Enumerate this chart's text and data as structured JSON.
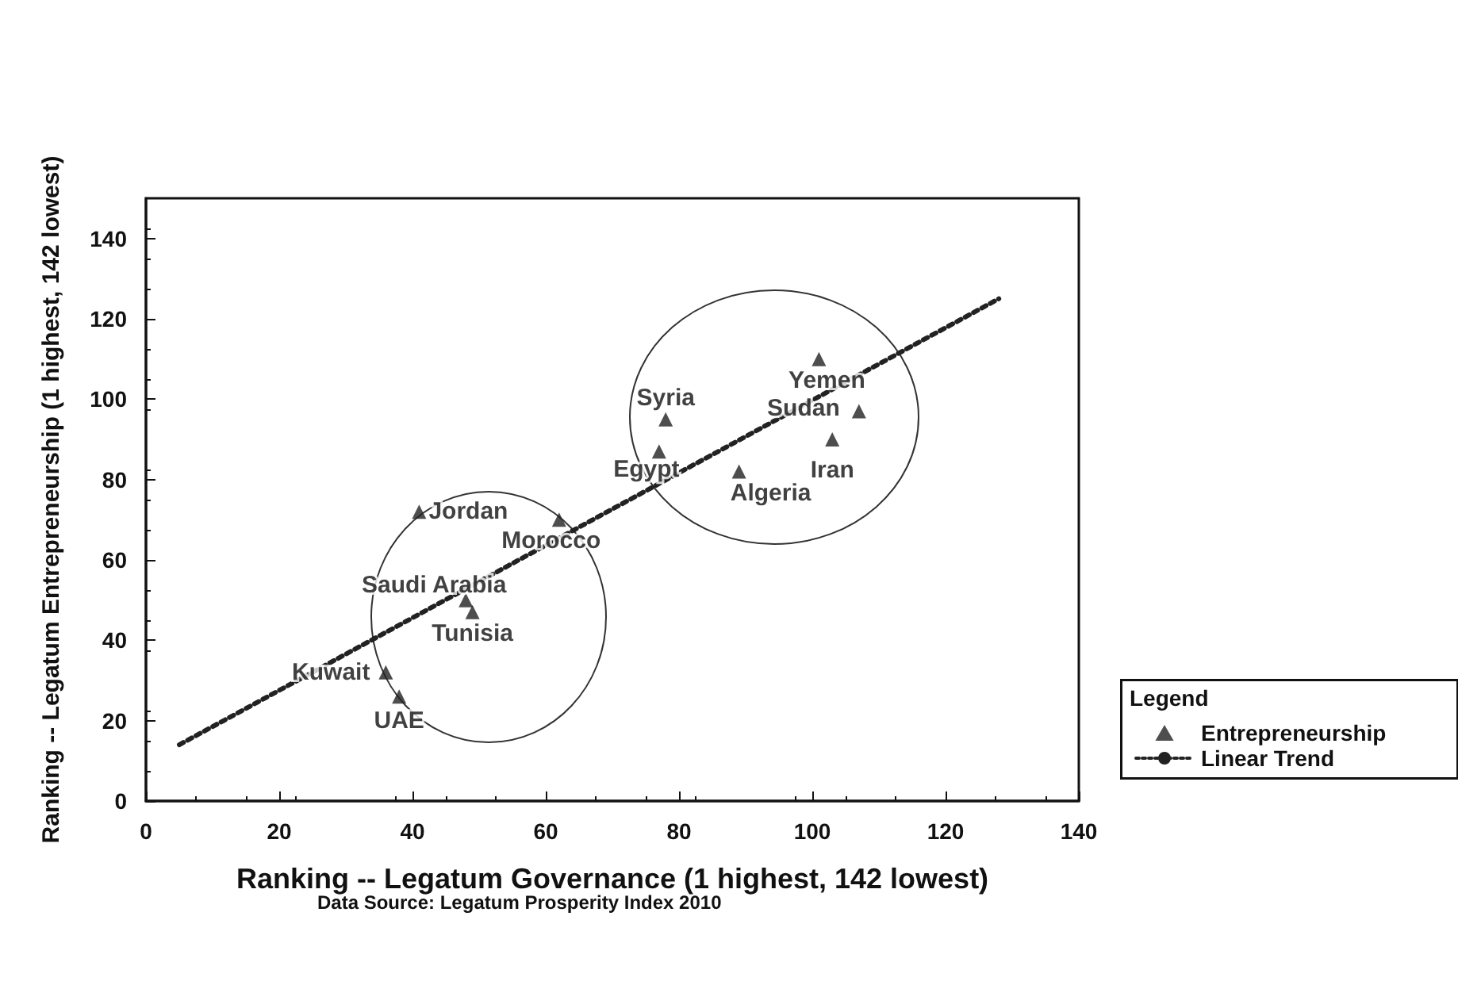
{
  "chart_data": {
    "type": "scatter",
    "xlabel": "Ranking -- Legatum Governance (1 highest, 142 lowest)",
    "ylabel": "Ranking -- Legatum Entrepreneurship (1 highest, 142 lowest)",
    "legend_title": "Legend",
    "xlim": [
      0,
      140
    ],
    "ylim": [
      0,
      150
    ],
    "xticks": [
      0,
      20,
      40,
      60,
      80,
      100,
      120,
      140
    ],
    "yticks": [
      0,
      20,
      40,
      60,
      80,
      100,
      120,
      140
    ],
    "grid": false,
    "legend": "bottom right",
    "series": [
      {
        "name": "Entrepreneurship",
        "color": "#222222",
        "marker": "triangle",
        "x": [
          41,
          62,
          48,
          49,
          36,
          38,
          78,
          77,
          89,
          101,
          107,
          103
        ],
        "values": [
          72,
          70,
          50,
          47,
          32,
          26,
          95,
          87,
          82,
          110,
          97,
          90
        ]
      },
      {
        "name": "Linear Trend",
        "type": "line",
        "color": "#222222",
        "marker": "none",
        "line_style": "dotted",
        "x": [
          5,
          128
        ],
        "values": [
          14,
          125
        ]
      }
    ],
    "annotations": [
      {
        "text": "Jordan",
        "x": 41,
        "y": 72
      },
      {
        "text": "Morocco",
        "x": 62,
        "y": 70
      },
      {
        "text": "Saudi Arabia",
        "x": 48,
        "y": 50
      },
      {
        "text": "Tunisia",
        "x": 49,
        "y": 47
      },
      {
        "text": "Kuwait",
        "x": 36,
        "y": 32
      },
      {
        "text": "UAE",
        "x": 38,
        "y": 26
      },
      {
        "text": "Syria",
        "x": 78,
        "y": 95
      },
      {
        "text": "Egypt",
        "x": 77,
        "y": 87
      },
      {
        "text": "Algeria",
        "x": 89,
        "y": 82
      },
      {
        "text": "Yemen",
        "x": 101,
        "y": 110
      },
      {
        "text": "Sudan",
        "x": 107,
        "y": 97
      },
      {
        "text": "Iran",
        "x": 103,
        "y": 90
      },
      "Data Source: Legatum Prosperity Index 2010"
    ]
  }
}
